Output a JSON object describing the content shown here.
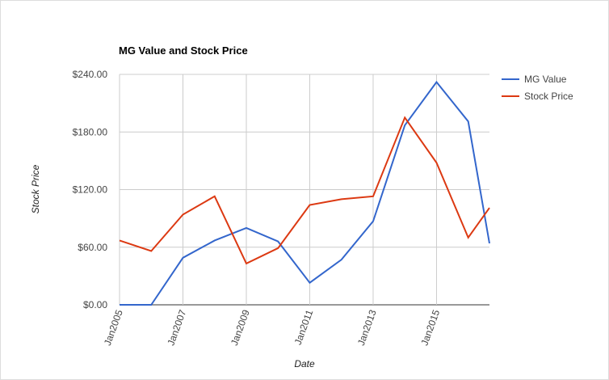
{
  "chart_data": {
    "type": "line",
    "title": "MG Value and Stock Price",
    "x_label": "Date",
    "y_label": "Stock Price",
    "x": [
      2005,
      2006,
      2007,
      2008,
      2009,
      2010,
      2011,
      2012,
      2013,
      2014,
      2015,
      2016,
      2016.67
    ],
    "series": [
      {
        "name": "MG Value",
        "color": "#3366cc",
        "values": [
          0,
          0,
          49,
          67,
          80,
          66,
          23,
          47,
          87,
          187,
          232,
          191,
          64
        ]
      },
      {
        "name": "Stock Price",
        "color": "#dc3912",
        "values": [
          67,
          56,
          94,
          113,
          43,
          59,
          104,
          110,
          113,
          195,
          148,
          70,
          101
        ]
      }
    ],
    "xlim": [
      2005,
      2016.67
    ],
    "xticks": [
      {
        "value": 2005,
        "label": "Jan2005"
      },
      {
        "value": 2007,
        "label": "Jan2007"
      },
      {
        "value": 2009,
        "label": "Jan2009"
      },
      {
        "value": 2011,
        "label": "Jan2011"
      },
      {
        "value": 2013,
        "label": "Jan2013"
      },
      {
        "value": 2015,
        "label": "Jan2015"
      }
    ],
    "ylim": [
      0,
      240
    ],
    "yticks": [
      {
        "value": 0,
        "label": "$0.00"
      },
      {
        "value": 60,
        "label": "$60.00"
      },
      {
        "value": 120,
        "label": "$120.00"
      },
      {
        "value": 180,
        "label": "$180.00"
      },
      {
        "value": 240,
        "label": "$240.00"
      }
    ],
    "grid": true,
    "legend": "right"
  }
}
